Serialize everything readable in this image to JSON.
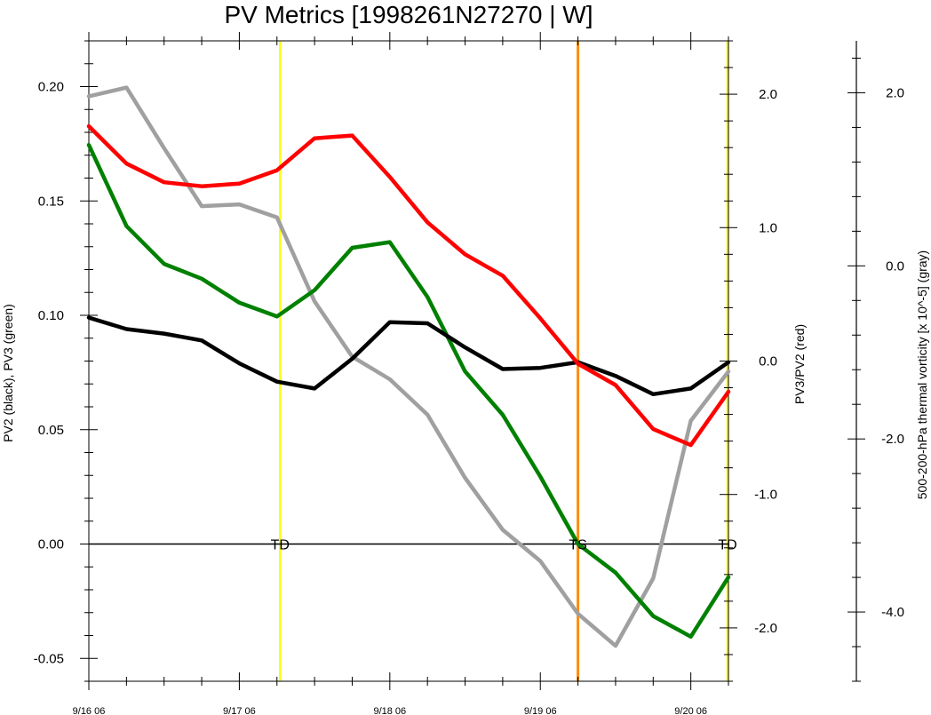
{
  "chart_data": {
    "type": "line",
    "title": "PV Metrics [1998261N27270 | W]",
    "left_axis_label": "PV2 (black), PV3 (green)",
    "right_axis_label": "PV3/PV2 (red)",
    "far_axis_label": "500-200-hPa thermal vorticity [x 10^-5] (gray)",
    "x_ticks": [
      "9/16 06",
      "9/17 06",
      "9/18 06",
      "9/19 06",
      "9/20 06"
    ],
    "x_tick_hours": [
      0,
      24,
      48,
      72,
      96
    ],
    "x_range_hours": [
      0,
      102
    ],
    "left_axis": {
      "range": [
        -0.06,
        0.22
      ],
      "ticks": [
        "0.20",
        "0.15",
        "0.10",
        "0.05",
        "0.00",
        "-0.05"
      ],
      "tick_values": [
        0.2,
        0.15,
        0.1,
        0.05,
        0.0,
        -0.05
      ]
    },
    "right_axis": {
      "range": [
        -2.4,
        2.4
      ],
      "ticks": [
        "2.0",
        "1.0",
        "0.0",
        "-1.0",
        "-2.0"
      ],
      "tick_values": [
        2.0,
        1.0,
        0.0,
        -1.0,
        -2.0
      ]
    },
    "far_axis": {
      "range": [
        -4.8,
        2.6
      ],
      "ticks": [
        "2.0",
        "0.0",
        "-2.0",
        "-4.0"
      ],
      "tick_values": [
        2.0,
        0.0,
        -2.0,
        -4.0
      ]
    },
    "hours": [
      0,
      6,
      12,
      18,
      24,
      30,
      36,
      42,
      48,
      54,
      60,
      66,
      72,
      78,
      84,
      90,
      96,
      102
    ],
    "series": [
      {
        "name": "PV2",
        "axis": "left",
        "color": "#000000",
        "values": [
          0.099,
          0.094,
          0.092,
          0.089,
          0.079,
          0.071,
          0.068,
          0.081,
          0.097,
          0.0965,
          0.086,
          0.0765,
          0.077,
          0.0795,
          0.0735,
          0.0655,
          0.068,
          0.0795
        ]
      },
      {
        "name": "PV3",
        "axis": "left",
        "color": "#008000",
        "values": [
          0.1745,
          0.139,
          0.1225,
          0.116,
          0.1055,
          0.0995,
          0.111,
          0.1295,
          0.132,
          0.108,
          0.0755,
          0.0565,
          0.0295,
          0.0,
          -0.0125,
          -0.0315,
          -0.0405,
          -0.0145
        ]
      },
      {
        "name": "PV3/PV2",
        "axis": "right",
        "color": "#ff0000",
        "values": [
          1.76,
          1.48,
          1.34,
          1.31,
          1.33,
          1.43,
          1.67,
          1.69,
          1.38,
          1.04,
          0.8,
          0.64,
          0.32,
          -0.02,
          -0.18,
          -0.51,
          -0.63,
          -0.23
        ]
      },
      {
        "name": "500-200-hPa thermal vorticity",
        "axis": "far",
        "color": "#a0a0a0",
        "values": [
          1.96,
          2.06,
          1.36,
          0.69,
          0.71,
          0.56,
          -0.41,
          -1.05,
          -1.31,
          -1.72,
          -2.45,
          -3.05,
          -3.41,
          -4.02,
          -4.39,
          -3.61,
          -1.79,
          -1.22
        ]
      }
    ],
    "markers": [
      {
        "hour": 30.5,
        "label": "TD",
        "color": "#ffff00"
      },
      {
        "hour": 78,
        "label": "TS",
        "color": "#ff8c00"
      },
      {
        "hour": 102,
        "label": "TD",
        "color": "#ffff00"
      }
    ],
    "zero_line": true,
    "grid": false
  }
}
